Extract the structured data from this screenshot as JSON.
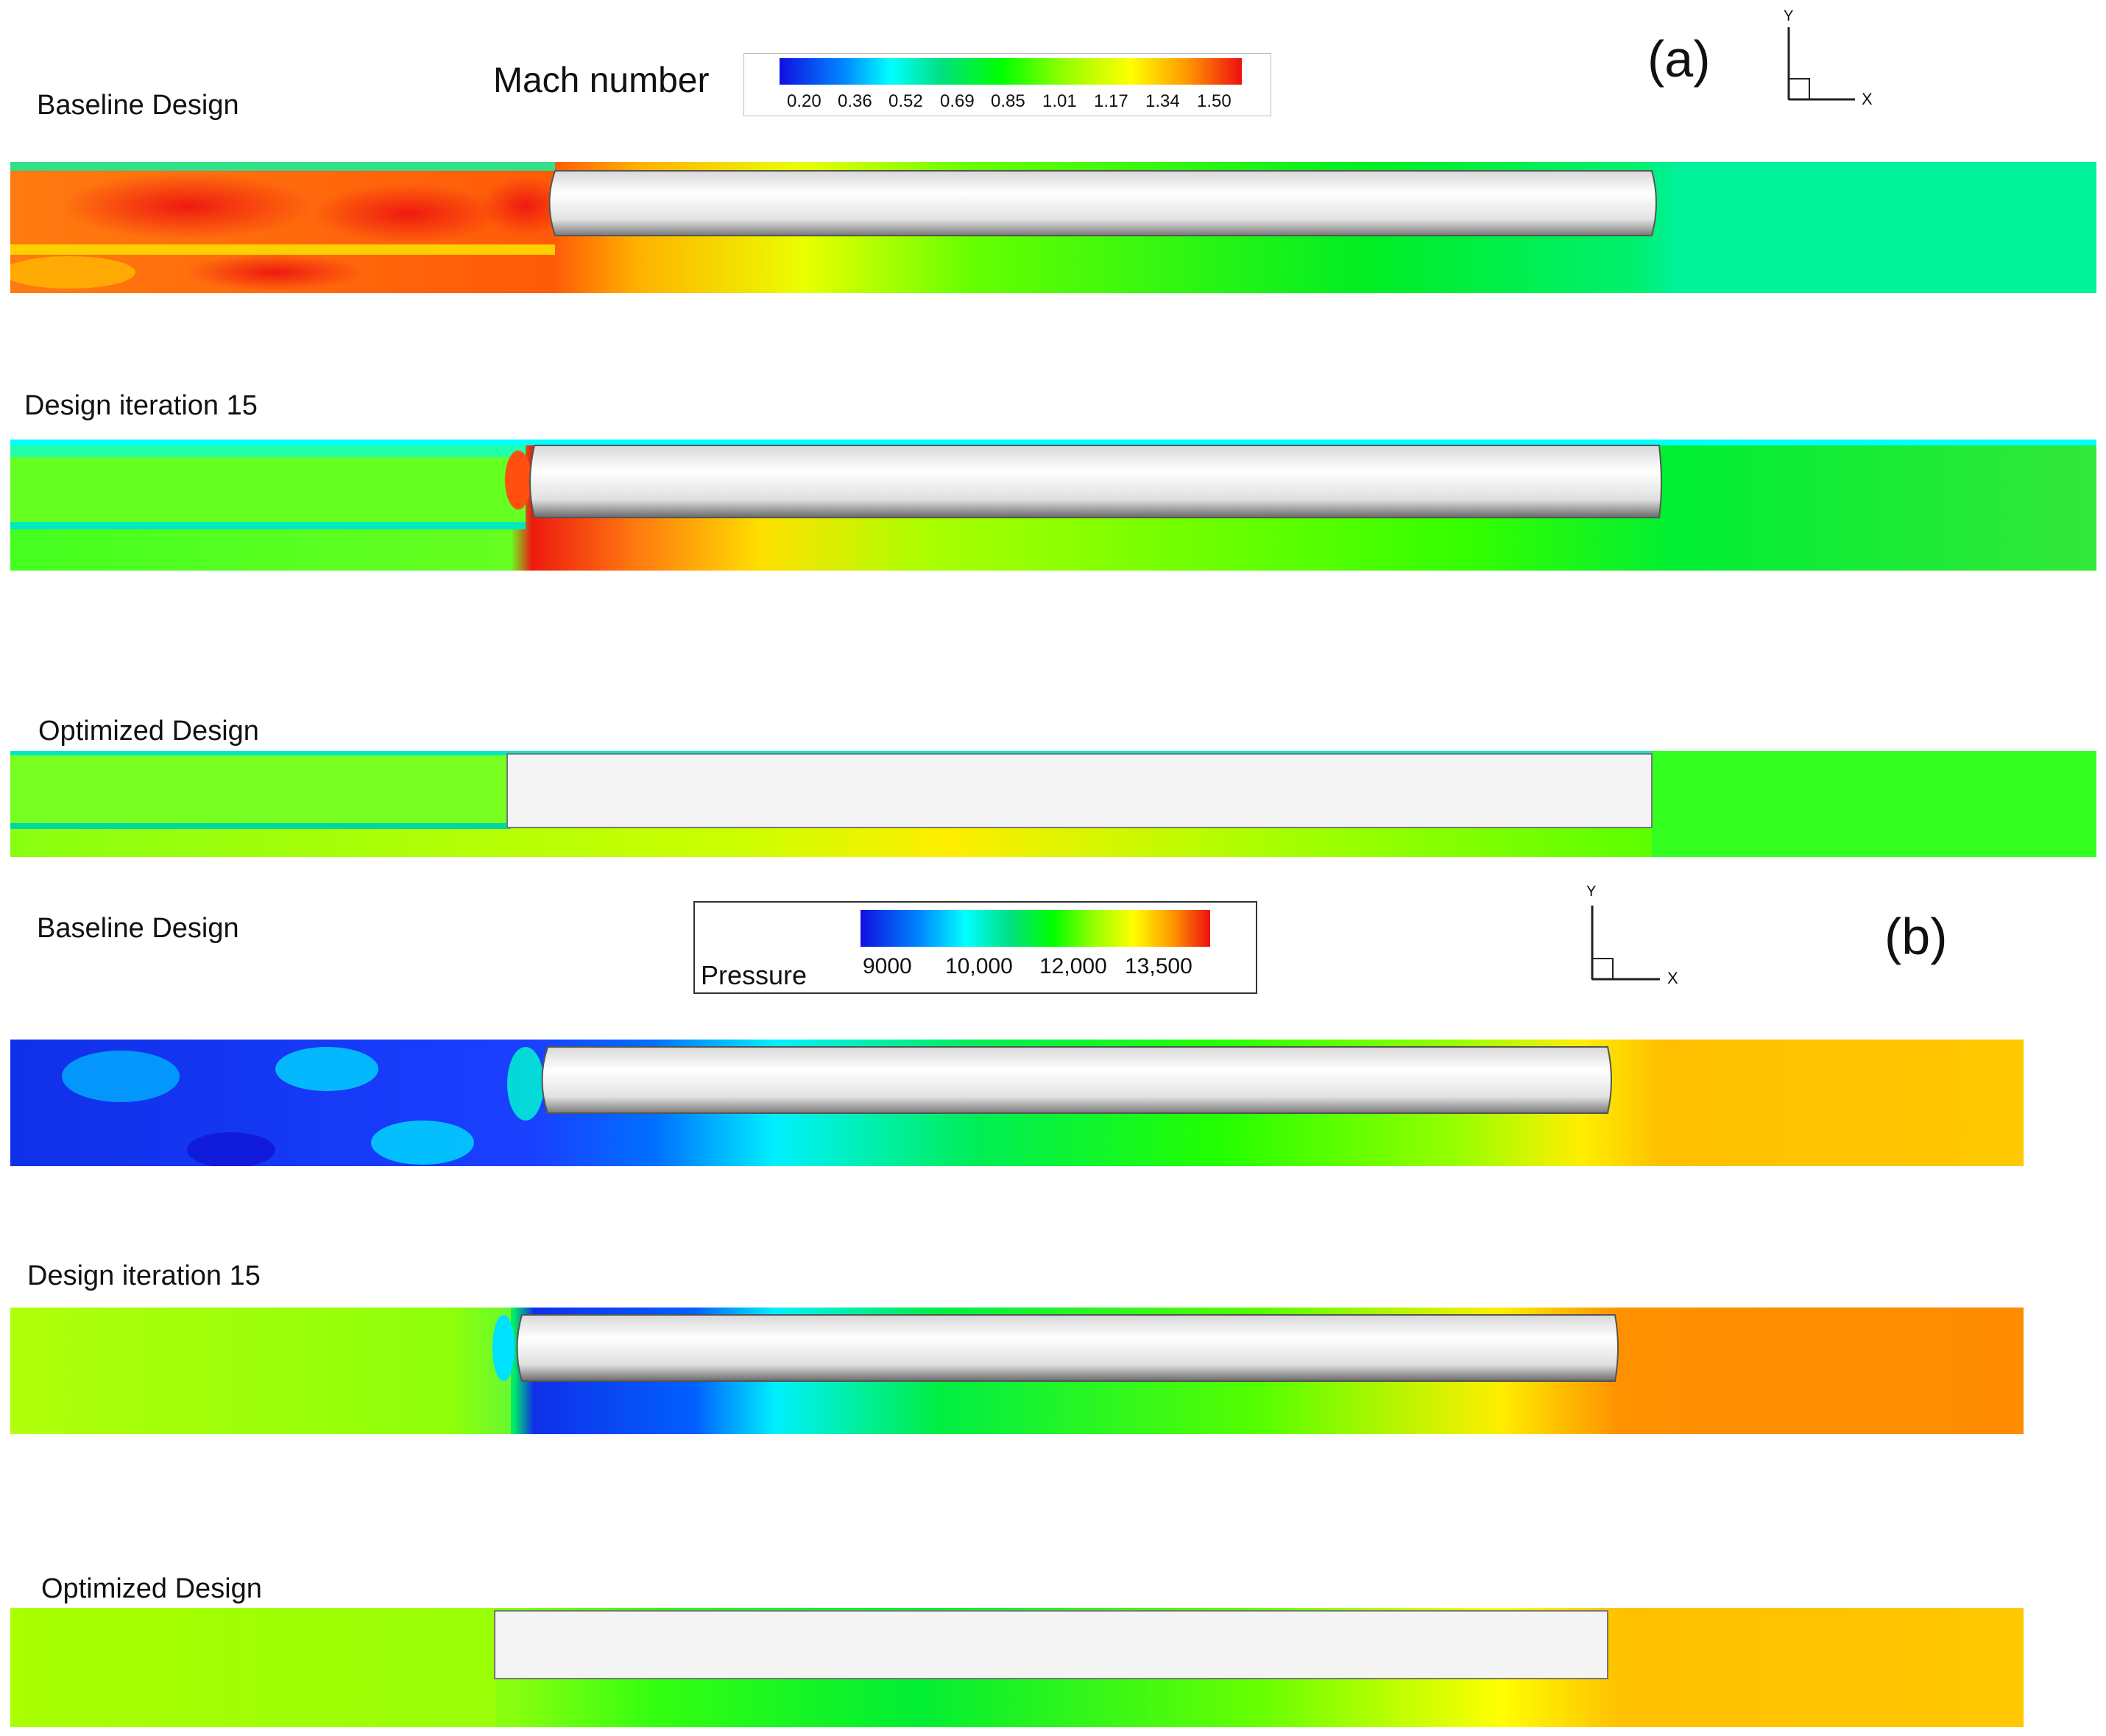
{
  "panel_a": {
    "tag": "(a)",
    "colorbar": {
      "title": "Mach number",
      "ticks": [
        "0.20",
        "0.36",
        "0.52",
        "0.69",
        "0.85",
        "1.01",
        "1.17",
        "1.34",
        "1.50"
      ],
      "range": [
        0.2,
        1.5
      ]
    },
    "axes": {
      "y": "Y",
      "x": "X"
    },
    "rows": [
      {
        "label": "Baseline Design"
      },
      {
        "label": "Design iteration 15"
      },
      {
        "label": "Optimized Design"
      }
    ]
  },
  "panel_b": {
    "tag": "(b)",
    "colorbar": {
      "title": "Pressure",
      "ticks": [
        "9000",
        "10,000",
        "12,000",
        "13,500"
      ],
      "range": [
        9000,
        13500
      ]
    },
    "axes": {
      "y": "Y",
      "x": "X"
    },
    "rows": [
      {
        "label": "Baseline Design"
      },
      {
        "label": "Design iteration 15"
      },
      {
        "label": "Optimized Design"
      }
    ]
  },
  "colors": {
    "colormap": [
      "#1010e0",
      "#00aaff",
      "#00ffff",
      "#00e060",
      "#22ff00",
      "#aaff00",
      "#ffff00",
      "#ffaa00",
      "#ff6600",
      "#ee1010"
    ],
    "body_light": "#f4f4f4",
    "body_dark": "#6a6a6a"
  }
}
